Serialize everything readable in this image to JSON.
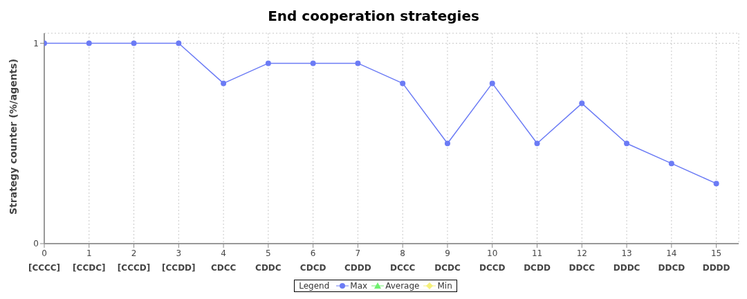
{
  "chart_data": {
    "type": "line",
    "title": "End cooperation strategies",
    "ylabel": "Strategy counter (%/agents)",
    "legend_title": "Legend",
    "categories": [
      "0\n[CCCC]",
      "1\n[CCDC]",
      "2\n[CCCD]",
      "3\n[CCDD]",
      "4\nCDCC",
      "5\nCDDC",
      "6\nCDCD",
      "7\nCDDD",
      "8\nDCCC",
      "9\nDCDC",
      "10\nDCCD",
      "11\nDCDD",
      "12\nDDCC",
      "13\nDDDC",
      "14\nDDCD",
      "15\nDDDD"
    ],
    "ylim": [
      0,
      1.05
    ],
    "yticks": [
      0,
      1
    ],
    "series": [
      {
        "name": "Max",
        "color": "#6b7bf5",
        "marker": "circle",
        "values": [
          1,
          1,
          1,
          1,
          0.8,
          0.9,
          0.9,
          0.9,
          0.8,
          0.5,
          0.8,
          0.5,
          0.7,
          0.5,
          0.4,
          0.3
        ]
      },
      {
        "name": "Average",
        "color": "#6ff06f",
        "marker": "triangle",
        "values": [
          null,
          null,
          null,
          null,
          null,
          null,
          null,
          null,
          null,
          null,
          null,
          null,
          null,
          null,
          null,
          null
        ]
      },
      {
        "name": "Min",
        "color": "#f5f07a",
        "marker": "diamond",
        "values": [
          null,
          null,
          null,
          null,
          null,
          null,
          null,
          null,
          null,
          null,
          null,
          null,
          null,
          null,
          null,
          null
        ]
      }
    ],
    "grid": true,
    "legend": "bottom",
    "line_style": "solid"
  }
}
